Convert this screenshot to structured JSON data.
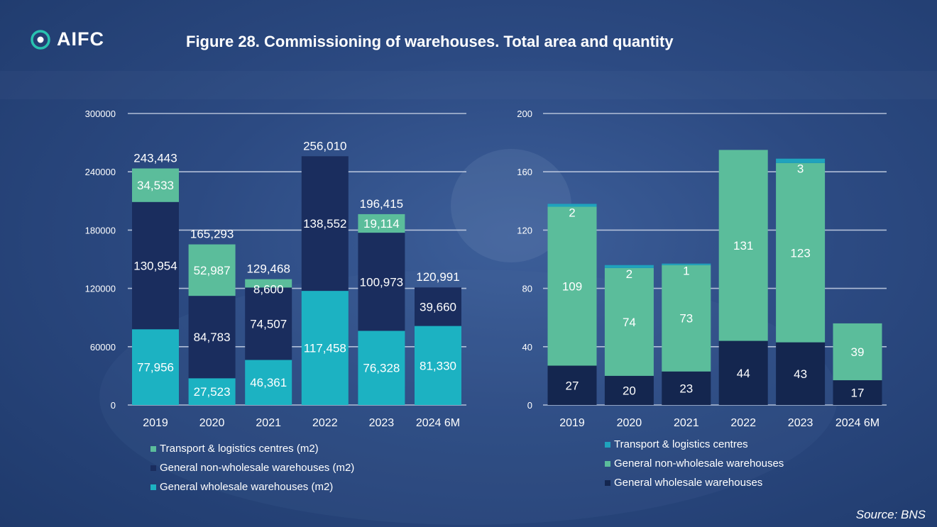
{
  "header": {
    "logo_text": "AIFC",
    "title": "Figure 28. Commissioning of warehouses. Total area and quantity",
    "source": "Source: BNS"
  },
  "colors": {
    "transport": "#1fa3bd",
    "non_wholesale": "#1a2d5e",
    "wholesale_area": "#1cb2c2",
    "non_wholesale_qty": "#5bbd9b",
    "transport_area": "#5bbd9b",
    "wholesale_qty": "#14264f"
  },
  "chart_data": [
    {
      "type": "bar",
      "stacked": true,
      "categories": [
        "2019",
        "2020",
        "2021",
        "2022",
        "2023",
        "2024 6M"
      ],
      "ylim": [
        0,
        300000
      ],
      "yticks": [
        "0",
        "60000",
        "120000",
        "180000",
        "240000",
        "300000"
      ],
      "grid": true,
      "legend_position": "bottom",
      "series": [
        {
          "name": "General wholesale warehouses (m2)",
          "values": [
            77956,
            27523,
            46361,
            117458,
            76328,
            81330
          ],
          "labels": [
            "77,956",
            "27,523",
            "46,361",
            "117,458",
            "76,328",
            "81,330"
          ]
        },
        {
          "name": "General non-wholesale warehouses (m2)",
          "values": [
            130954,
            84783,
            74507,
            138552,
            100973,
            39660
          ],
          "labels": [
            "130,954",
            "84,783",
            "74,507",
            "138,552",
            "100,973",
            "39,660"
          ]
        },
        {
          "name": "Transport & logistics centres (m2)",
          "values": [
            34533,
            52987,
            8600,
            0,
            19114,
            0
          ],
          "labels": [
            "34,533",
            "52,987",
            "8,600",
            "",
            "19,114",
            ""
          ]
        }
      ],
      "totals": [
        "243,443",
        "165,293",
        "129,468",
        "256,010",
        "196,415",
        "120,991"
      ],
      "legend": [
        "Transport & logistics centres (m2)",
        "General non-wholesale warehouses (m2)",
        "General wholesale warehouses (m2)"
      ]
    },
    {
      "type": "bar",
      "stacked": true,
      "categories": [
        "2019",
        "2020",
        "2021",
        "2022",
        "2023",
        "2024 6M"
      ],
      "ylim": [
        0,
        200
      ],
      "yticks": [
        "0",
        "40",
        "80",
        "120",
        "160",
        "200"
      ],
      "grid": true,
      "legend_position": "bottom",
      "series": [
        {
          "name": "General wholesale warehouses",
          "values": [
            27,
            20,
            23,
            44,
            43,
            17
          ],
          "labels": [
            "27",
            "20",
            "23",
            "44",
            "43",
            "17"
          ]
        },
        {
          "name": "General non-wholesale warehouses",
          "values": [
            109,
            74,
            73,
            131,
            123,
            39
          ],
          "labels": [
            "109",
            "74",
            "73",
            "131",
            "123",
            "39"
          ]
        },
        {
          "name": "Transport & logistics centres",
          "values": [
            2,
            2,
            1,
            0,
            3,
            0
          ],
          "labels": [
            "2",
            "2",
            "1",
            "",
            "3",
            ""
          ]
        }
      ],
      "legend": [
        "Transport & logistics centres",
        "General non-wholesale warehouses",
        "General wholesale warehouses"
      ]
    }
  ]
}
